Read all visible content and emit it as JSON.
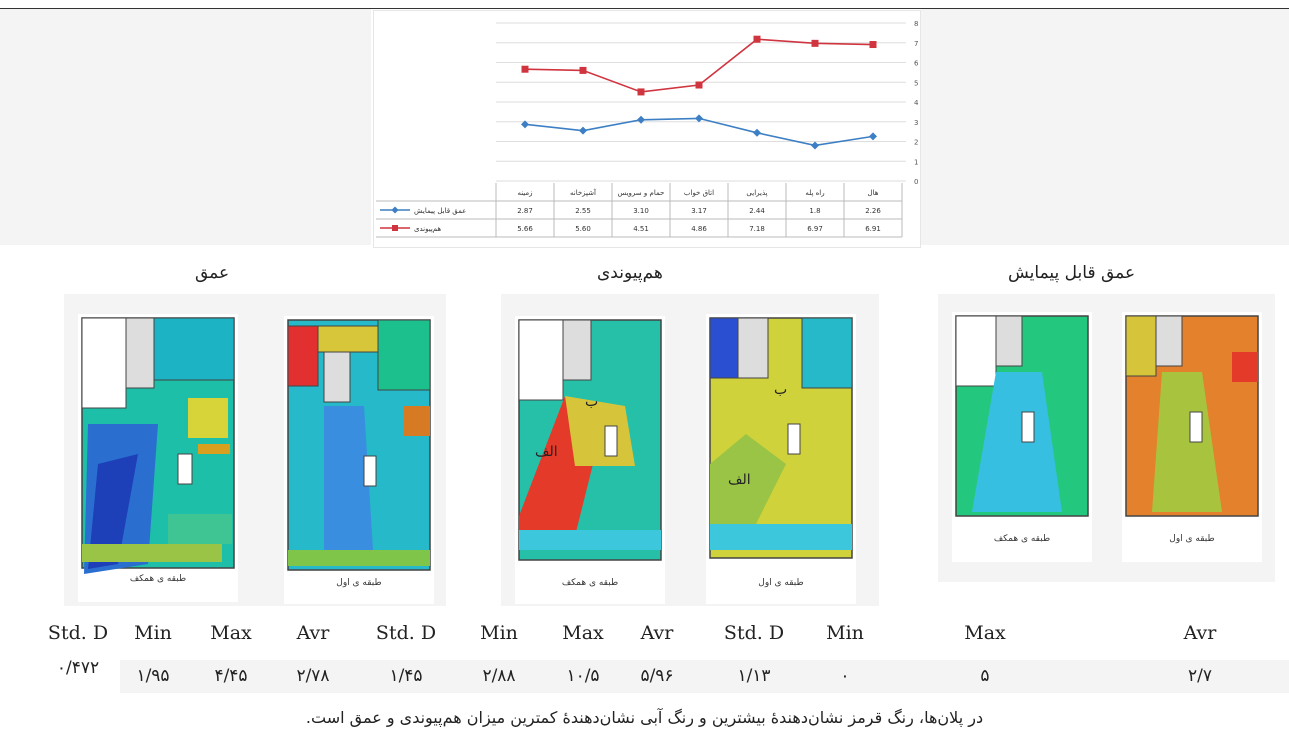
{
  "chart_data": {
    "type": "line",
    "categories": [
      "زمینه",
      "آشپزخانه",
      "حمام و سرویس",
      "اتاق خواب",
      "پذیرایی",
      "راه پله",
      "هال"
    ],
    "series": [
      {
        "name": "عمق قابل پیمایش",
        "values": [
          2.87,
          2.55,
          3.1,
          3.17,
          2.44,
          1.8,
          2.26
        ],
        "color": "#3d7fc4",
        "marker": "diamond"
      },
      {
        "name": "هم‌پیوندی",
        "values": [
          5.66,
          5.6,
          4.51,
          4.86,
          7.18,
          6.97,
          6.91
        ],
        "color": "#d0343f",
        "marker": "square"
      }
    ],
    "table_rows": [
      [
        "2.87",
        "2.55",
        "3.10",
        "3.17",
        "2.44",
        "1.8",
        "2.26"
      ],
      [
        "5.66",
        "5.60",
        "4.51",
        "4.86",
        "7.18",
        "6.97",
        "6.91"
      ]
    ],
    "yticks": [
      "8",
      "7",
      "6",
      "5",
      "4",
      "3",
      "2",
      "1",
      "0"
    ],
    "ylim": [
      0,
      8
    ],
    "axis_side": "right",
    "grid": true,
    "legend": "table-left"
  },
  "headings": {
    "depth": "عمق",
    "integration": "هم‌پیوندی",
    "walkable_depth": "عمق قابل پیمایش"
  },
  "plan_captions": {
    "ground": "طبقه ی همکف",
    "first": "طبقه ی اول"
  },
  "plan_labels": {
    "alef": "الف",
    "be": "ب"
  },
  "stats_headers": [
    "Std. D",
    "Min",
    "Max",
    "Avr",
    "Std. D",
    "Min",
    "Max",
    "Avr",
    "Std. D",
    "Min",
    "Max",
    "Avr"
  ],
  "stats_values": [
    "۰/۴۷۲",
    "۱/۹۵",
    "۴/۴۵",
    "۲/۷۸",
    "۱/۴۵",
    "۲/۸۸",
    "۱۰/۵",
    "۵/۹۶",
    "۱/۱۳",
    "۰",
    "۵",
    "۲/۷"
  ],
  "footer": "در پلان‌ها، رنگ قرمز نشان‌دهندهٔ بیشترین و رنگ آبی نشان‌دهندهٔ کمترین میزان هم‌پیوندی و عمق است.",
  "colors": {
    "panel_bg": "#f4f4f4",
    "line_blue": "#3d7fc4",
    "line_red": "#d0343f"
  }
}
